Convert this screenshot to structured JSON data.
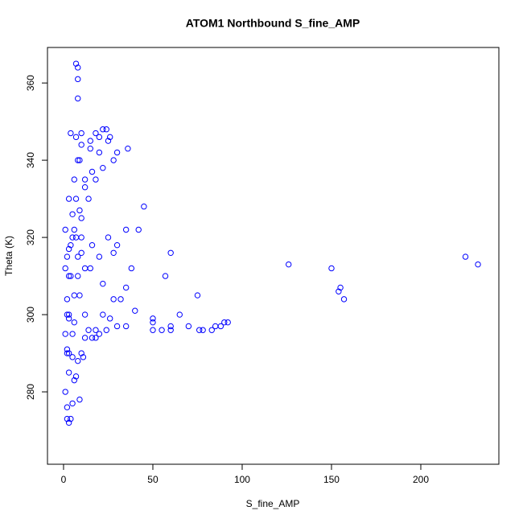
{
  "chart_data": {
    "type": "line",
    "title": "ATOM1 Northbound S_fine_AMP",
    "x_label": "S_fine_AMP",
    "y_label": "Theta (K)",
    "x": [
      2,
      3,
      4,
      2,
      1,
      3,
      2,
      5,
      3,
      6,
      4,
      8,
      5,
      10,
      7,
      12,
      9,
      15,
      20,
      25,
      30,
      36,
      28,
      22,
      18,
      14,
      10,
      8,
      12,
      16,
      20,
      24,
      30,
      35,
      18,
      10,
      8,
      11,
      6,
      9,
      5,
      7,
      3,
      6,
      9,
      12,
      16,
      25,
      35,
      42,
      30,
      20,
      60,
      126,
      150,
      225,
      232,
      155,
      154,
      157,
      90,
      85,
      75,
      65,
      60,
      55,
      50,
      57,
      50,
      70,
      78,
      83,
      92,
      88,
      76,
      60,
      50,
      40,
      35,
      28,
      22,
      15,
      10,
      7,
      5,
      3,
      6,
      8,
      10,
      7,
      8,
      8,
      8,
      7,
      10,
      15,
      18,
      22,
      24,
      26,
      20,
      16,
      12,
      9,
      6,
      4,
      2,
      1,
      3,
      2,
      1,
      2,
      5,
      14,
      22,
      28,
      45,
      38,
      32,
      26,
      18,
      12,
      3,
      2,
      1,
      3,
      4
    ],
    "series": [
      {
        "name": "Theta",
        "color": "#0000ff",
        "values": [
          273,
          272,
          273,
          276,
          280,
          285,
          290,
          295,
          300,
          305,
          310,
          315,
          320,
          325,
          330,
          335,
          340,
          343,
          346,
          345,
          342,
          343,
          340,
          338,
          335,
          330,
          320,
          310,
          300,
          294,
          295,
          296,
          297,
          297,
          294,
          290,
          288,
          289,
          283,
          278,
          277,
          284,
          290,
          298,
          305,
          312,
          318,
          320,
          322,
          322,
          318,
          315,
          316,
          313,
          312,
          315,
          313,
          307,
          306,
          304,
          298,
          297,
          305,
          300,
          296,
          296,
          296,
          310,
          299,
          297,
          296,
          296,
          298,
          297,
          296,
          297,
          298,
          301,
          307,
          304,
          308,
          312,
          316,
          320,
          326,
          330,
          335,
          340,
          344,
          346,
          356,
          361,
          364,
          365,
          347,
          345,
          347,
          348,
          348,
          346,
          342,
          337,
          333,
          327,
          322,
          318,
          315,
          322,
          310,
          300,
          295,
          291,
          289,
          296,
          300,
          316,
          328,
          312,
          304,
          299,
          296,
          294,
          299,
          304,
          312,
          317,
          347
        ]
      }
    ],
    "xlim": [
      -9,
      243.7
    ],
    "ylim": [
      261.25,
      369.2
    ],
    "xticks": [
      0,
      50,
      100,
      150,
      200
    ],
    "yticks": [
      280,
      300,
      320,
      340,
      360
    ]
  }
}
